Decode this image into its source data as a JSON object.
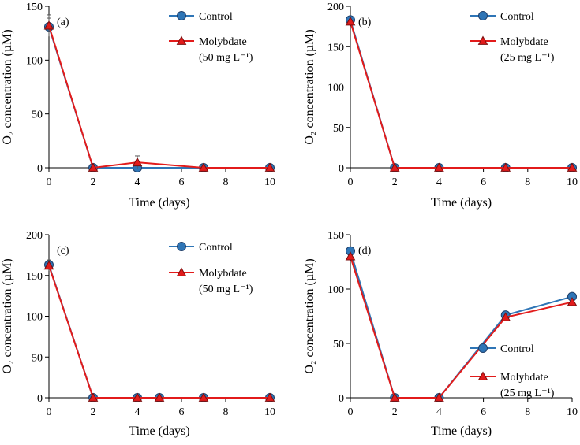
{
  "figure": {
    "shared_ylabel": "O₂ concentration (µM)",
    "shared_xlabel": "Time (days)"
  },
  "colors": {
    "control_fill": "#2e75b6",
    "control_line": "#2e75b6",
    "molybdate_fill": "#e21b1b",
    "molybdate_line": "#e21b1b",
    "axis": "#000000"
  },
  "chart_data": [
    {
      "id": "a",
      "type": "line",
      "panel_label": "(a)",
      "title": "",
      "xlabel": "Time (days)",
      "ylabel": "O₂ concentration (µM)",
      "xlim": [
        0,
        10
      ],
      "ylim": [
        0,
        150
      ],
      "xticks": [
        0,
        2,
        4,
        6,
        8,
        10
      ],
      "yticks": [
        0,
        50,
        100,
        150
      ],
      "legend_position": "top-right",
      "series": [
        {
          "name": "Control",
          "marker": "circle",
          "x": [
            0,
            2,
            4,
            7,
            10
          ],
          "y": [
            131,
            0,
            0,
            0,
            0
          ],
          "err": [
            8,
            0,
            0,
            0,
            0
          ]
        },
        {
          "name": "Molybdate",
          "name_sub": "(50 mg L⁻¹)",
          "marker": "triangle",
          "x": [
            0,
            2,
            4,
            7,
            10
          ],
          "y": [
            132,
            0,
            5,
            0,
            0
          ],
          "err": [
            10,
            0,
            6,
            0,
            0
          ]
        }
      ]
    },
    {
      "id": "b",
      "type": "line",
      "panel_label": "(b)",
      "title": "",
      "xlabel": "Time (days)",
      "ylabel": "O₂ concentration (µM)",
      "xlim": [
        0,
        10
      ],
      "ylim": [
        0,
        200
      ],
      "xticks": [
        0,
        2,
        4,
        6,
        8,
        10
      ],
      "yticks": [
        0,
        50,
        100,
        150,
        200
      ],
      "legend_position": "top-right",
      "series": [
        {
          "name": "Control",
          "marker": "circle",
          "x": [
            0,
            2,
            4,
            7,
            10
          ],
          "y": [
            183,
            0,
            0,
            0,
            0
          ],
          "err": [
            0,
            0,
            0,
            0,
            0
          ]
        },
        {
          "name": "Molybdate",
          "name_sub": "(25 mg L⁻¹)",
          "marker": "triangle",
          "x": [
            0,
            2,
            4,
            7,
            10
          ],
          "y": [
            181,
            0,
            0,
            0,
            0
          ],
          "err": [
            0,
            0,
            0,
            0,
            0
          ]
        }
      ]
    },
    {
      "id": "c",
      "type": "line",
      "panel_label": "(c)",
      "title": "",
      "xlabel": "Time (days)",
      "ylabel": "O₂ concentration (µM)",
      "xlim": [
        0,
        10
      ],
      "ylim": [
        0,
        200
      ],
      "xticks": [
        0,
        2,
        4,
        6,
        8,
        10
      ],
      "yticks": [
        0,
        50,
        100,
        150,
        200
      ],
      "legend_position": "top-right",
      "series": [
        {
          "name": "Control",
          "marker": "circle",
          "x": [
            0,
            2,
            4,
            5,
            7,
            10
          ],
          "y": [
            163,
            0,
            0,
            0,
            0,
            0
          ],
          "err": [
            6,
            0,
            0,
            0,
            0,
            0
          ]
        },
        {
          "name": "Molybdate",
          "name_sub": "(50 mg L⁻¹)",
          "marker": "triangle",
          "x": [
            0,
            2,
            4,
            5,
            7,
            10
          ],
          "y": [
            162,
            0,
            0,
            0,
            0,
            0
          ],
          "err": [
            6,
            0,
            0,
            0,
            0,
            0
          ]
        }
      ]
    },
    {
      "id": "d",
      "type": "line",
      "panel_label": "(d)",
      "title": "",
      "xlabel": "Time (days)",
      "ylabel": "O₂ concentration (µM)",
      "xlim": [
        0,
        10
      ],
      "ylim": [
        0,
        150
      ],
      "xticks": [
        0,
        2,
        4,
        6,
        8,
        10
      ],
      "yticks": [
        0,
        50,
        100,
        150
      ],
      "legend_position": "bottom-right",
      "series": [
        {
          "name": "Control",
          "marker": "circle",
          "x": [
            0,
            2,
            4,
            7,
            10
          ],
          "y": [
            135,
            0,
            0,
            76,
            93
          ],
          "err": [
            0,
            0,
            0,
            0,
            0
          ]
        },
        {
          "name": "Molybdate",
          "name_sub": "(25 mg L⁻¹)",
          "marker": "triangle",
          "x": [
            0,
            2,
            4,
            7,
            10
          ],
          "y": [
            130,
            0,
            0,
            74,
            88
          ],
          "err": [
            0,
            0,
            0,
            0,
            0
          ]
        }
      ]
    }
  ]
}
